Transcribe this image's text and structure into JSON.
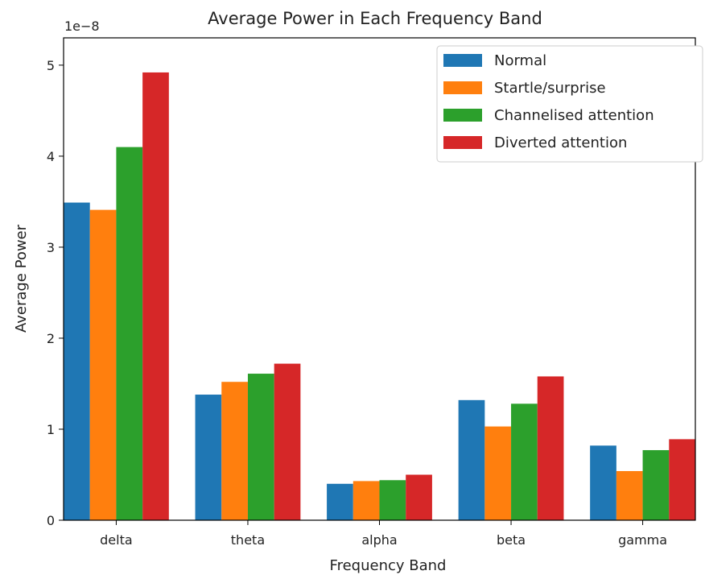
{
  "chart_data": {
    "type": "bar",
    "title": "Average Power in Each Frequency Band",
    "xlabel": "Frequency Band",
    "ylabel": "Average Power",
    "y_scale_label": "1e−8",
    "y_scale_factor": 1e-08,
    "categories": [
      "delta",
      "theta",
      "alpha",
      "beta",
      "gamma"
    ],
    "ylim": [
      0,
      5.3
    ],
    "yticks": [
      0,
      1,
      2,
      3,
      4,
      5
    ],
    "grid": false,
    "legend_position": "top-right",
    "series": [
      {
        "name": "Normal",
        "color": "#1f77b4",
        "values": [
          3.49,
          1.38,
          0.4,
          1.32,
          0.82
        ]
      },
      {
        "name": "Startle/surprise",
        "color": "#ff7f0e",
        "values": [
          3.41,
          1.52,
          0.43,
          1.03,
          0.54
        ]
      },
      {
        "name": "Channelised attention",
        "color": "#2ca02c",
        "values": [
          4.1,
          1.61,
          0.44,
          1.28,
          0.77
        ]
      },
      {
        "name": "Diverted attention",
        "color": "#d62728",
        "values": [
          4.92,
          1.72,
          0.5,
          1.58,
          0.89
        ]
      }
    ]
  }
}
